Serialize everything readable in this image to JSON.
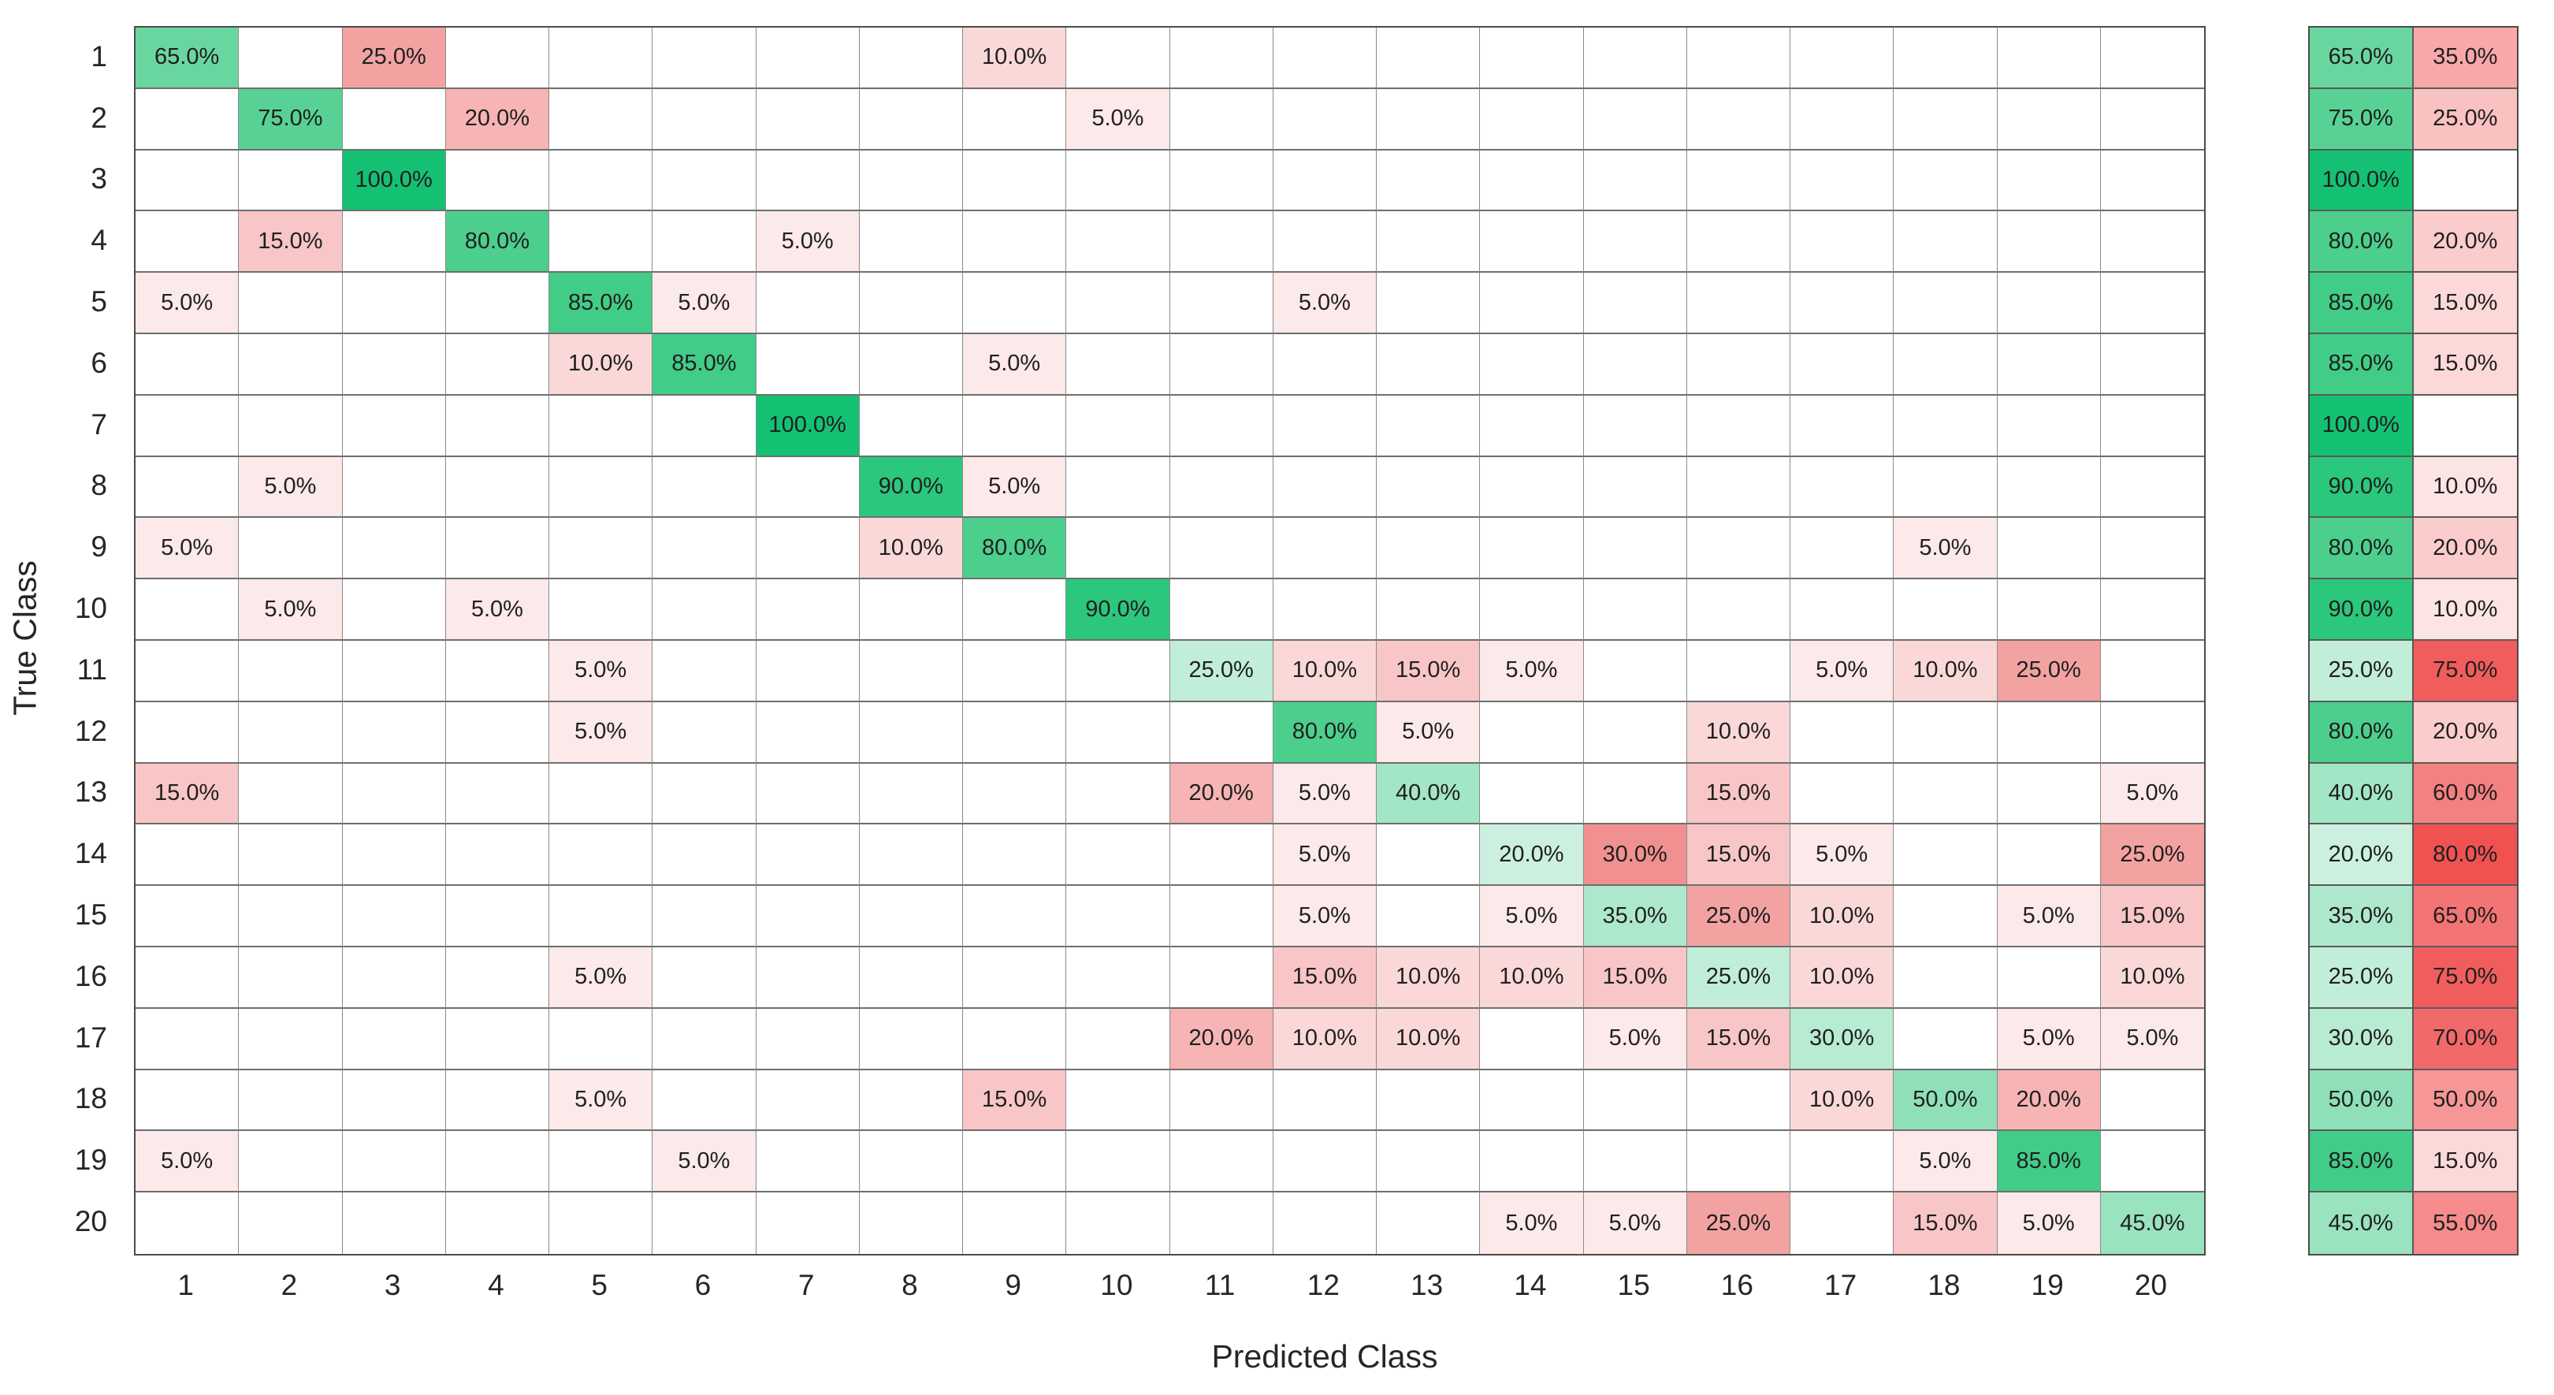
{
  "colors": {
    "empty_cell": "#FFFFFF",
    "grid_line_v": "#8A8A8A",
    "grid_line_h": "#6E6E6E",
    "outer_border": "#4B4B4B",
    "summary_grid_line": "#5A5A5A",
    "cell_text": "#1F1F1F",
    "tick_text": "#262626",
    "axis_title_text": "#262626",
    "diagonal_base_green": "#14C173",
    "offdiagonal_base_red": "#F05252",
    "green_by_value": {
      "20": "#CBF0DF",
      "25": "#C1EED9",
      "30": "#B7EBD2",
      "35": "#ADE8CC",
      "40": "#A3E6C5",
      "45": "#99E3BF",
      "50": "#8FE0B8",
      "65": "#6AD69F",
      "75": "#57D294",
      "80": "#4CCF8D",
      "85": "#41CC87",
      "90": "#2BC77C",
      "100": "#14C173"
    },
    "matrix_red_by_value": {
      "5": "#FCE9E9",
      "10": "#FAD8D8",
      "15": "#F8C6C6",
      "20": "#F6B4B4",
      "25": "#F3A2A2",
      "30": "#F19090"
    },
    "summary_red_by_value": {
      "10": "#FDE4E4",
      "15": "#FCD8D8",
      "20": "#FBCCCC",
      "25": "#FAC1C1",
      "35": "#F8A8A8",
      "50": "#F69696",
      "55": "#F58B8B",
      "60": "#F48080",
      "65": "#F37474",
      "70": "#F26969",
      "75": "#F15D5D",
      "80": "#F05252"
    }
  },
  "chart_data": {
    "type": "heatmap",
    "subtype": "confusion-matrix-row-normalized",
    "title": "",
    "xlabel": "Predicted Class",
    "ylabel": "True Class",
    "cell_value_unit": "percent",
    "cell_value_format": "#0.0%",
    "x_tick_labels": [
      "1",
      "2",
      "3",
      "4",
      "5",
      "6",
      "7",
      "8",
      "9",
      "10",
      "11",
      "12",
      "13",
      "14",
      "15",
      "16",
      "17",
      "18",
      "19",
      "20"
    ],
    "row_summary_columns": [
      "correct_percent",
      "incorrect_percent"
    ],
    "rows": [
      {
        "true_class": "1",
        "cells": [
          [
            1,
            65
          ],
          [
            3,
            25
          ],
          [
            9,
            10
          ]
        ],
        "row_summary": {
          "correct": 65,
          "incorrect": 35
        }
      },
      {
        "true_class": "2",
        "cells": [
          [
            2,
            75
          ],
          [
            4,
            20
          ],
          [
            10,
            5
          ]
        ],
        "row_summary": {
          "correct": 75,
          "incorrect": 25
        }
      },
      {
        "true_class": "3",
        "cells": [
          [
            3,
            100
          ]
        ],
        "row_summary": {
          "correct": 100,
          "incorrect": null
        }
      },
      {
        "true_class": "4",
        "cells": [
          [
            2,
            15
          ],
          [
            4,
            80
          ],
          [
            7,
            5
          ]
        ],
        "row_summary": {
          "correct": 80,
          "incorrect": 20
        }
      },
      {
        "true_class": "5",
        "cells": [
          [
            1,
            5
          ],
          [
            5,
            85
          ],
          [
            6,
            5
          ],
          [
            12,
            5
          ]
        ],
        "row_summary": {
          "correct": 85,
          "incorrect": 15
        }
      },
      {
        "true_class": "6",
        "cells": [
          [
            5,
            10
          ],
          [
            6,
            85
          ],
          [
            9,
            5
          ]
        ],
        "row_summary": {
          "correct": 85,
          "incorrect": 15
        }
      },
      {
        "true_class": "7",
        "cells": [
          [
            7,
            100
          ]
        ],
        "row_summary": {
          "correct": 100,
          "incorrect": null
        }
      },
      {
        "true_class": "8",
        "cells": [
          [
            2,
            5
          ],
          [
            8,
            90
          ],
          [
            9,
            5
          ]
        ],
        "row_summary": {
          "correct": 90,
          "incorrect": 10
        }
      },
      {
        "true_class": "9",
        "cells": [
          [
            1,
            5
          ],
          [
            8,
            10
          ],
          [
            9,
            80
          ],
          [
            18,
            5
          ]
        ],
        "row_summary": {
          "correct": 80,
          "incorrect": 20
        }
      },
      {
        "true_class": "10",
        "cells": [
          [
            2,
            5
          ],
          [
            4,
            5
          ],
          [
            10,
            90
          ]
        ],
        "row_summary": {
          "correct": 90,
          "incorrect": 10
        }
      },
      {
        "true_class": "11",
        "cells": [
          [
            5,
            5
          ],
          [
            11,
            25
          ],
          [
            12,
            10
          ],
          [
            13,
            15
          ],
          [
            14,
            5
          ],
          [
            17,
            5
          ],
          [
            18,
            10
          ],
          [
            19,
            25
          ]
        ],
        "row_summary": {
          "correct": 25,
          "incorrect": 75
        }
      },
      {
        "true_class": "12",
        "cells": [
          [
            5,
            5
          ],
          [
            12,
            80
          ],
          [
            13,
            5
          ],
          [
            16,
            10
          ]
        ],
        "row_summary": {
          "correct": 80,
          "incorrect": 20
        }
      },
      {
        "true_class": "13",
        "cells": [
          [
            1,
            15
          ],
          [
            11,
            20
          ],
          [
            12,
            5
          ],
          [
            13,
            40
          ],
          [
            16,
            15
          ],
          [
            20,
            5
          ]
        ],
        "row_summary": {
          "correct": 40,
          "incorrect": 60
        }
      },
      {
        "true_class": "14",
        "cells": [
          [
            12,
            5
          ],
          [
            14,
            20
          ],
          [
            15,
            30
          ],
          [
            16,
            15
          ],
          [
            17,
            5
          ],
          [
            20,
            25
          ]
        ],
        "row_summary": {
          "correct": 20,
          "incorrect": 80
        }
      },
      {
        "true_class": "15",
        "cells": [
          [
            12,
            5
          ],
          [
            14,
            5
          ],
          [
            15,
            35
          ],
          [
            16,
            25
          ],
          [
            17,
            10
          ],
          [
            19,
            5
          ],
          [
            20,
            15
          ]
        ],
        "row_summary": {
          "correct": 35,
          "incorrect": 65
        }
      },
      {
        "true_class": "16",
        "cells": [
          [
            5,
            5
          ],
          [
            12,
            15
          ],
          [
            13,
            10
          ],
          [
            14,
            10
          ],
          [
            15,
            15
          ],
          [
            16,
            25
          ],
          [
            17,
            10
          ],
          [
            20,
            10
          ]
        ],
        "row_summary": {
          "correct": 25,
          "incorrect": 75
        }
      },
      {
        "true_class": "17",
        "cells": [
          [
            11,
            20
          ],
          [
            12,
            10
          ],
          [
            13,
            10
          ],
          [
            15,
            5
          ],
          [
            16,
            15
          ],
          [
            17,
            30
          ],
          [
            19,
            5
          ],
          [
            20,
            5
          ]
        ],
        "row_summary": {
          "correct": 30,
          "incorrect": 70
        }
      },
      {
        "true_class": "18",
        "cells": [
          [
            5,
            5
          ],
          [
            9,
            15
          ],
          [
            17,
            10
          ],
          [
            18,
            50
          ],
          [
            19,
            20
          ]
        ],
        "row_summary": {
          "correct": 50,
          "incorrect": 50
        }
      },
      {
        "true_class": "19",
        "cells": [
          [
            1,
            5
          ],
          [
            6,
            5
          ],
          [
            18,
            5
          ],
          [
            19,
            85
          ]
        ],
        "row_summary": {
          "correct": 85,
          "incorrect": 15
        }
      },
      {
        "true_class": "20",
        "cells": [
          [
            14,
            5
          ],
          [
            15,
            5
          ],
          [
            16,
            25
          ],
          [
            18,
            15
          ],
          [
            19,
            5
          ],
          [
            20,
            45
          ]
        ],
        "row_summary": {
          "correct": 45,
          "incorrect": 55
        }
      }
    ]
  }
}
